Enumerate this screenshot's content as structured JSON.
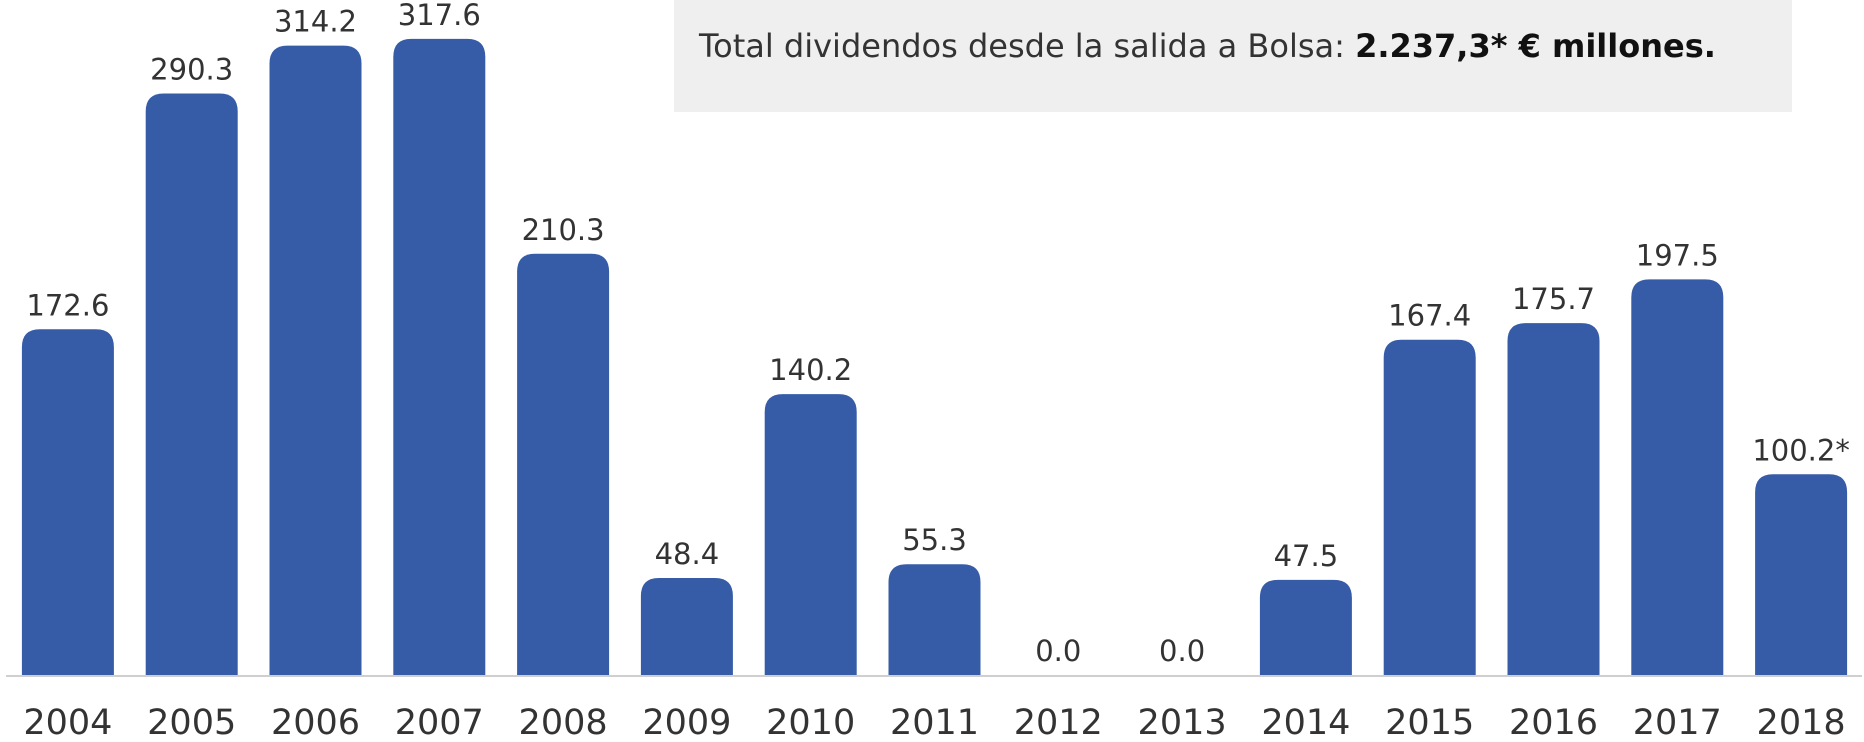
{
  "chart_data": {
    "type": "bar",
    "annotation": {
      "text": "Total dividendos desde la salida a Bolsa: ",
      "emphasis": "2.237,3* € millones."
    },
    "categories": [
      "2004",
      "2005",
      "2006",
      "2007",
      "2008",
      "2009",
      "2010",
      "2011",
      "2012",
      "2013",
      "2014",
      "2015",
      "2016",
      "2017",
      "2018"
    ],
    "values": [
      172.6,
      290.3,
      314.2,
      317.6,
      210.3,
      48.4,
      140.2,
      55.3,
      0,
      0,
      47.5,
      167.4,
      175.7,
      197.5,
      100.2
    ],
    "value_labels": [
      "172.6",
      "290.3",
      "314.2",
      "317.6",
      "210.3",
      "48.4",
      "140.2",
      "55.3",
      "0.0",
      "0.0",
      "47.5",
      "167.4",
      "175.7",
      "197.5",
      "100.2*"
    ],
    "color": "#365ca8",
    "ylim": [
      0,
      330
    ]
  }
}
